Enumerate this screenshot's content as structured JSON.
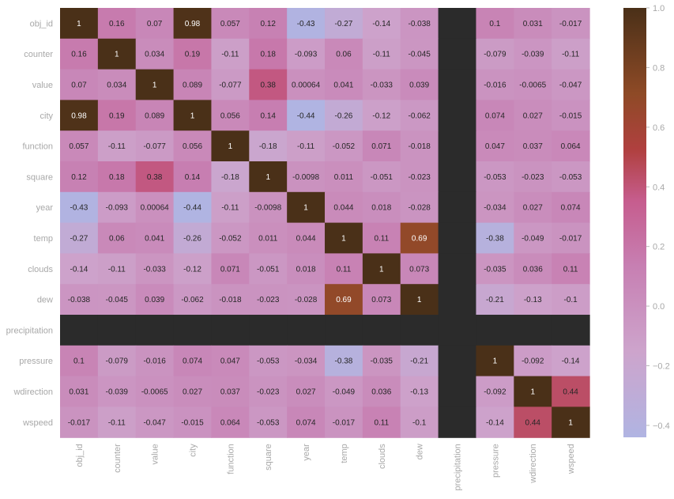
{
  "chart_data": {
    "type": "heatmap",
    "title": "",
    "xlabel": "",
    "ylabel": "",
    "labels": [
      "obj_id",
      "counter",
      "value",
      "city",
      "function",
      "square",
      "year",
      "temp",
      "clouds",
      "dew",
      "precipitation",
      "pressure",
      "wdirection",
      "wspeed"
    ],
    "matrix": [
      [
        1,
        0.16,
        0.07,
        0.98,
        0.057,
        0.12,
        -0.43,
        -0.27,
        -0.14,
        -0.038,
        null,
        0.1,
        0.031,
        -0.017
      ],
      [
        0.16,
        1,
        0.034,
        0.19,
        -0.11,
        0.18,
        -0.093,
        0.06,
        -0.11,
        -0.045,
        null,
        -0.079,
        -0.039,
        -0.11
      ],
      [
        0.07,
        0.034,
        1,
        0.089,
        -0.077,
        0.38,
        0.00064,
        0.041,
        -0.033,
        0.039,
        null,
        -0.016,
        -0.0065,
        -0.047
      ],
      [
        0.98,
        0.19,
        0.089,
        1,
        0.056,
        0.14,
        -0.44,
        -0.26,
        -0.12,
        -0.062,
        null,
        0.074,
        0.027,
        -0.015
      ],
      [
        0.057,
        -0.11,
        -0.077,
        0.056,
        1,
        -0.18,
        -0.11,
        -0.052,
        0.071,
        -0.018,
        null,
        0.047,
        0.037,
        0.064
      ],
      [
        0.12,
        0.18,
        0.38,
        0.14,
        -0.18,
        1,
        -0.0098,
        0.011,
        -0.051,
        -0.023,
        null,
        -0.053,
        -0.023,
        -0.053
      ],
      [
        -0.43,
        -0.093,
        0.00064,
        -0.44,
        -0.11,
        -0.0098,
        1,
        0.044,
        0.018,
        -0.028,
        null,
        -0.034,
        0.027,
        0.074
      ],
      [
        -0.27,
        0.06,
        0.041,
        -0.26,
        -0.052,
        0.011,
        0.044,
        1,
        0.11,
        0.69,
        null,
        -0.38,
        -0.049,
        -0.017
      ],
      [
        -0.14,
        -0.11,
        -0.033,
        -0.12,
        0.071,
        -0.051,
        0.018,
        0.11,
        1,
        0.073,
        null,
        -0.035,
        0.036,
        0.11
      ],
      [
        -0.038,
        -0.045,
        0.039,
        -0.062,
        -0.018,
        -0.023,
        -0.028,
        0.69,
        0.073,
        1,
        null,
        -0.21,
        -0.13,
        -0.1
      ],
      [
        null,
        null,
        null,
        null,
        null,
        null,
        null,
        null,
        null,
        null,
        null,
        null,
        null,
        null
      ],
      [
        0.1,
        -0.079,
        -0.016,
        0.074,
        0.047,
        -0.053,
        -0.034,
        -0.38,
        -0.035,
        -0.21,
        null,
        1,
        -0.092,
        -0.14
      ],
      [
        0.031,
        -0.039,
        -0.0065,
        0.027,
        0.037,
        -0.023,
        0.027,
        -0.049,
        0.036,
        -0.13,
        null,
        -0.092,
        1,
        0.44
      ],
      [
        -0.017,
        -0.11,
        -0.047,
        -0.015,
        0.064,
        -0.053,
        0.074,
        -0.017,
        0.11,
        -0.1,
        null,
        -0.14,
        0.44,
        1
      ]
    ],
    "colorbar": {
      "vmin": -0.44,
      "vmax": 1.0,
      "ticks": [
        1.0,
        0.8,
        0.6,
        0.4,
        0.2,
        0.0,
        -0.2,
        -0.4
      ],
      "tick_labels": [
        "1.0",
        "0.8",
        "0.6",
        "0.4",
        "0.2",
        "0.0",
        "−0.2",
        "−0.4"
      ]
    },
    "colormap_stops": [
      {
        "v": 0.0,
        "color": "#b0b4e2"
      },
      {
        "v": 0.2,
        "color": "#cda4cc"
      },
      {
        "v": 0.4,
        "color": "#c77fb2"
      },
      {
        "v": 0.55,
        "color": "#c65d8e"
      },
      {
        "v": 0.67,
        "color": "#b0403f"
      },
      {
        "v": 0.8,
        "color": "#8e4a26"
      },
      {
        "v": 1.0,
        "color": "#4a3018"
      }
    ],
    "nan_color": "#2b2b2b",
    "grid": false,
    "legend": "colorbar-right"
  }
}
